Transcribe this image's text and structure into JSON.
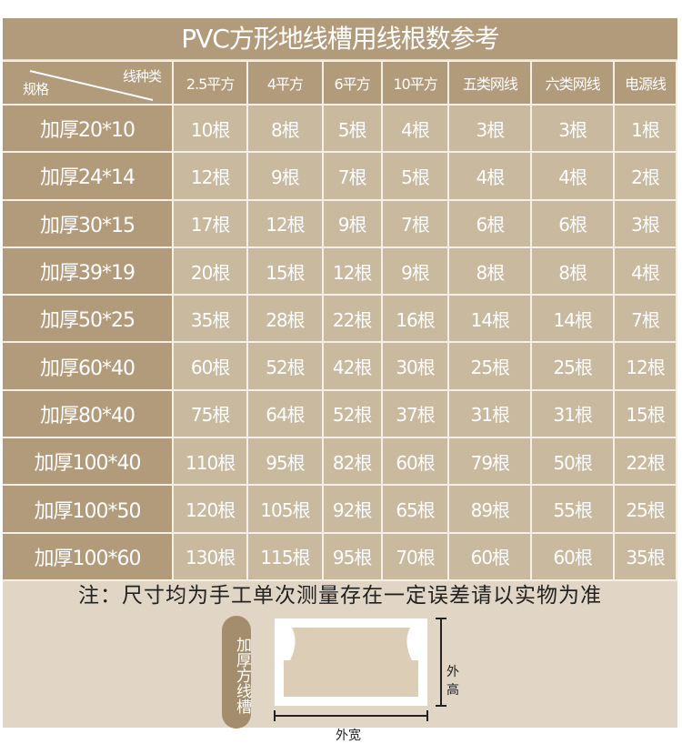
{
  "title": "PVC方形地线槽用线根数参考",
  "header": {
    "corner_top": "线种类",
    "corner_bottom": "规格",
    "columns": [
      "2.5平方",
      "4平方",
      "6平方",
      "10平方",
      "五类网线",
      "六类网线",
      "电源线"
    ]
  },
  "rows": [
    {
      "spec": "加厚20*10",
      "values": [
        "10根",
        "8根",
        "5根",
        "4根",
        "3根",
        "3根",
        "1根"
      ]
    },
    {
      "spec": "加厚24*14",
      "values": [
        "12根",
        "9根",
        "7根",
        "5根",
        "4根",
        "4根",
        "2根"
      ]
    },
    {
      "spec": "加厚30*15",
      "values": [
        "17根",
        "12根",
        "9根",
        "7根",
        "6根",
        "6根",
        "3根"
      ]
    },
    {
      "spec": "加厚39*19",
      "values": [
        "20根",
        "15根",
        "12根",
        "9根",
        "8根",
        "8根",
        "4根"
      ]
    },
    {
      "spec": "加厚50*25",
      "values": [
        "35根",
        "28根",
        "22根",
        "16根",
        "14根",
        "14根",
        "7根"
      ]
    },
    {
      "spec": "加厚60*40",
      "values": [
        "60根",
        "52根",
        "42根",
        "30根",
        "25根",
        "25根",
        "12根"
      ]
    },
    {
      "spec": "加厚80*40",
      "values": [
        "75根",
        "64根",
        "52根",
        "37根",
        "31根",
        "31根",
        "15根"
      ]
    },
    {
      "spec": "加厚100*40",
      "values": [
        "110根",
        "95根",
        "82根",
        "60根",
        "79根",
        "50根",
        "22根"
      ]
    },
    {
      "spec": "加厚100*50",
      "values": [
        "120根",
        "105根",
        "92根",
        "65根",
        "89根",
        "55根",
        "25根"
      ]
    },
    {
      "spec": "加厚100*60",
      "values": [
        "130根",
        "115根",
        "95根",
        "70根",
        "60根",
        "60根",
        "35根"
      ]
    }
  ],
  "note": "注：尺寸均为手工单次测量存在一定误差请以实物为准",
  "diagram": {
    "label": "加厚方线槽",
    "height_label": "外高",
    "width_label": "外宽"
  },
  "colors": {
    "header": "#b29b7b",
    "cell": "#c9b99f",
    "background": "#e1d6c5"
  }
}
